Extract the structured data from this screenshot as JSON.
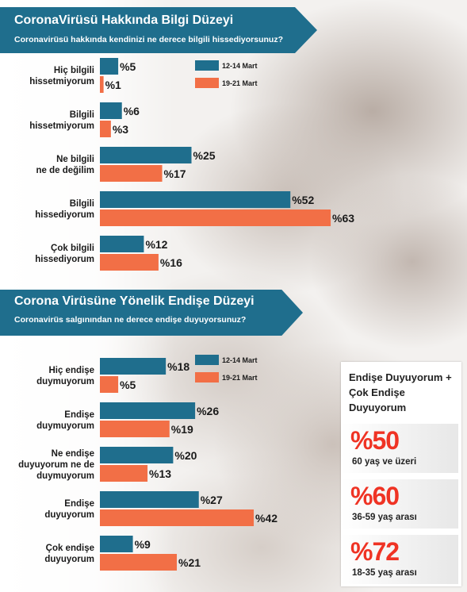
{
  "series_colors": {
    "12-14 Mart": "#1f6e8d",
    "19-21 Mart": "#f26f46"
  },
  "chart_data": [
    {
      "type": "bar",
      "orientation": "horizontal",
      "title": "CoronaVirüsü Hakkında Bilgi Düzeyi",
      "subtitle": "Coronavirüsü hakkında kendinizi ne derece bilgili hissediyorsunuz?",
      "categories": [
        [
          "Hiç bilgili",
          "hissetmiyorum"
        ],
        [
          "Bilgili",
          "hissetmiyorum"
        ],
        [
          "Ne bilgili",
          "ne de değilim"
        ],
        [
          "Bilgili",
          "hissediyorum"
        ],
        [
          "Çok bilgili",
          "hissediyorum"
        ]
      ],
      "series": [
        {
          "name": "12-14 Mart",
          "values": [
            5,
            6,
            25,
            52,
            12
          ],
          "labels": [
            "%5",
            "%6",
            "%25",
            "%52",
            "%12"
          ]
        },
        {
          "name": "19-21 Mart",
          "values": [
            1,
            3,
            17,
            63,
            16
          ],
          "labels": [
            "%1",
            "%3",
            "%17",
            "%63",
            "%16"
          ]
        }
      ],
      "unit": "%",
      "legend": "top-right"
    },
    {
      "type": "bar",
      "orientation": "horizontal",
      "title": "Corona Virüsüne Yönelik Endişe Düzeyi",
      "subtitle": "Coronavirüs salgınından ne derece endişe duyuyorsunuz?",
      "categories": [
        [
          "Hiç endişe",
          "duymuyorum"
        ],
        [
          "Endişe",
          "duymuyorum"
        ],
        [
          "Ne endişe",
          "duyuyorum ne de",
          "duymuyorum"
        ],
        [
          "Endişe",
          "duyuyorum"
        ],
        [
          "Çok endişe",
          "duyuyorum"
        ]
      ],
      "series": [
        {
          "name": "12-14 Mart",
          "values": [
            18,
            26,
            20,
            27,
            9
          ],
          "labels": [
            "%18",
            "%26",
            "%20",
            "%27",
            "%9"
          ]
        },
        {
          "name": "19-21 Mart",
          "values": [
            5,
            19,
            13,
            42,
            21
          ],
          "labels": [
            "%5",
            "%19",
            "%13",
            "%42",
            "%21"
          ]
        }
      ],
      "unit": "%",
      "legend": "top-right"
    }
  ],
  "side_panel": {
    "title": "Endişe Duyuyorum + Çok Endişe Duyuyorum",
    "stats": [
      {
        "value": "%50",
        "desc": "60 yaş ve üzeri"
      },
      {
        "value": "%60",
        "desc": "36-59 yaş arası"
      },
      {
        "value": "%72",
        "desc": "18-35 yaş arası"
      }
    ]
  }
}
